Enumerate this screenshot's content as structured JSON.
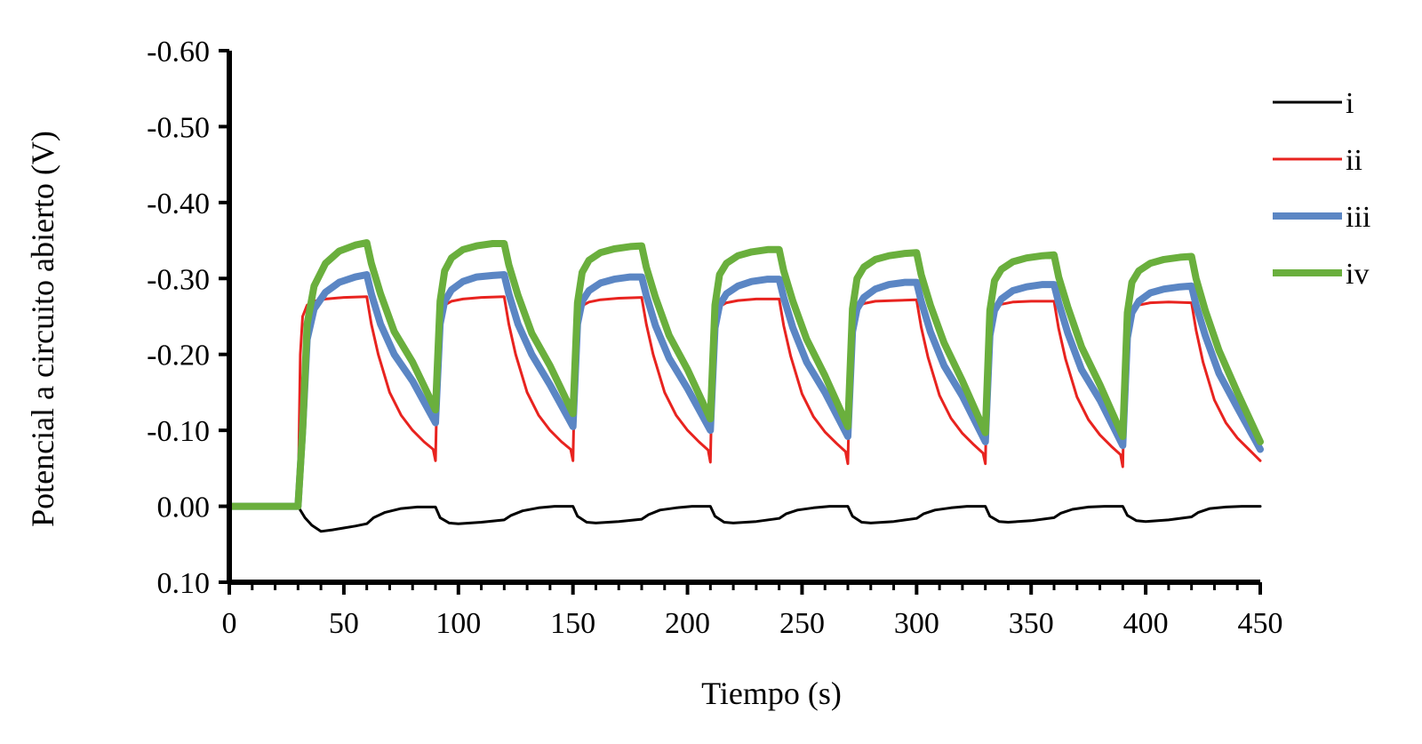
{
  "chart_data": {
    "type": "line",
    "xlabel": "Tiempo (s)",
    "ylabel": "Potencial a circuito abierto  (V)",
    "xlim": [
      0,
      450
    ],
    "ylim": [
      0.1,
      -0.6
    ],
    "y_axis_inverted": true,
    "grid": false,
    "legend_position": "right",
    "x_ticks": [
      "0",
      "50",
      "100",
      "150",
      "200",
      "250",
      "300",
      "350",
      "400",
      "450"
    ],
    "y_ticks": [
      "-0.60",
      "-0.50",
      "-0.40",
      "-0.30",
      "-0.20",
      "-0.10",
      "0.00",
      "0.10"
    ],
    "series": [
      {
        "name": "i",
        "color": "#000000",
        "width": 3,
        "x": [
          0,
          30,
          33,
          36,
          40,
          45,
          55,
          60,
          63,
          68,
          75,
          82,
          90,
          92,
          96,
          100,
          110,
          120,
          123,
          128,
          135,
          142,
          150,
          152,
          156,
          160,
          170,
          180,
          183,
          188,
          195,
          202,
          210,
          212,
          216,
          220,
          230,
          240,
          243,
          248,
          255,
          262,
          270,
          272,
          276,
          280,
          290,
          300,
          303,
          308,
          315,
          322,
          330,
          332,
          336,
          340,
          350,
          360,
          363,
          368,
          375,
          382,
          390,
          392,
          396,
          400,
          410,
          420,
          423,
          428,
          435,
          442,
          450
        ],
        "y": [
          0.0,
          0.0,
          0.015,
          0.025,
          0.033,
          0.031,
          0.026,
          0.023,
          0.015,
          0.008,
          0.003,
          0.001,
          0.001,
          0.015,
          0.022,
          0.023,
          0.021,
          0.018,
          0.012,
          0.006,
          0.002,
          0.0,
          0.0,
          0.013,
          0.021,
          0.022,
          0.02,
          0.017,
          0.011,
          0.005,
          0.002,
          0.0,
          0.0,
          0.013,
          0.021,
          0.022,
          0.02,
          0.016,
          0.01,
          0.005,
          0.002,
          0.0,
          0.0,
          0.013,
          0.021,
          0.022,
          0.02,
          0.016,
          0.01,
          0.005,
          0.002,
          0.0,
          0.0,
          0.013,
          0.02,
          0.021,
          0.019,
          0.015,
          0.009,
          0.004,
          0.001,
          0.0,
          0.0,
          0.012,
          0.019,
          0.02,
          0.018,
          0.014,
          0.008,
          0.003,
          0.001,
          0.0,
          0.0
        ]
      },
      {
        "name": "ii",
        "color": "#e8231f",
        "width": 3,
        "x": [
          0,
          30,
          31,
          32,
          34,
          37,
          42,
          50,
          60,
          62,
          65,
          70,
          75,
          80,
          85,
          89,
          90,
          91,
          92,
          94,
          97,
          102,
          110,
          120,
          122,
          125,
          130,
          135,
          140,
          145,
          149,
          150,
          151,
          152,
          154,
          157,
          162,
          170,
          180,
          182,
          185,
          190,
          195,
          200,
          205,
          209,
          210,
          211,
          212,
          214,
          217,
          222,
          230,
          240,
          242,
          245,
          250,
          255,
          260,
          265,
          269,
          270,
          271,
          272,
          274,
          277,
          282,
          290,
          300,
          302,
          305,
          310,
          315,
          320,
          325,
          329,
          330,
          331,
          332,
          334,
          337,
          342,
          350,
          360,
          362,
          365,
          370,
          375,
          380,
          385,
          389,
          390,
          391,
          392,
          394,
          397,
          402,
          410,
          420,
          422,
          425,
          430,
          435,
          440,
          445,
          450
        ],
        "y": [
          0.0,
          0.0,
          -0.2,
          -0.25,
          -0.265,
          -0.27,
          -0.273,
          -0.275,
          -0.276,
          -0.24,
          -0.2,
          -0.15,
          -0.12,
          -0.1,
          -0.085,
          -0.075,
          -0.06,
          -0.2,
          -0.25,
          -0.265,
          -0.27,
          -0.273,
          -0.275,
          -0.276,
          -0.24,
          -0.2,
          -0.15,
          -0.12,
          -0.1,
          -0.085,
          -0.075,
          -0.06,
          -0.2,
          -0.25,
          -0.264,
          -0.269,
          -0.272,
          -0.274,
          -0.275,
          -0.24,
          -0.2,
          -0.15,
          -0.12,
          -0.1,
          -0.085,
          -0.074,
          -0.058,
          -0.2,
          -0.25,
          -0.263,
          -0.268,
          -0.271,
          -0.273,
          -0.273,
          -0.238,
          -0.198,
          -0.148,
          -0.118,
          -0.098,
          -0.083,
          -0.072,
          -0.056,
          -0.2,
          -0.248,
          -0.262,
          -0.267,
          -0.27,
          -0.271,
          -0.272,
          -0.236,
          -0.196,
          -0.146,
          -0.116,
          -0.096,
          -0.081,
          -0.07,
          -0.056,
          -0.2,
          -0.247,
          -0.261,
          -0.266,
          -0.269,
          -0.27,
          -0.27,
          -0.234,
          -0.194,
          -0.144,
          -0.114,
          -0.094,
          -0.079,
          -0.068,
          -0.052,
          -0.2,
          -0.246,
          -0.26,
          -0.265,
          -0.268,
          -0.269,
          -0.268,
          -0.232,
          -0.19,
          -0.14,
          -0.11,
          -0.09,
          -0.075,
          -0.06
        ]
      },
      {
        "name": "iii",
        "color": "#5b86c4",
        "width": 8,
        "x": [
          0,
          30,
          32,
          34,
          37,
          42,
          48,
          55,
          60,
          62,
          66,
          72,
          80,
          90,
          92,
          94,
          97,
          102,
          108,
          115,
          120,
          122,
          126,
          132,
          140,
          150,
          152,
          154,
          157,
          162,
          168,
          175,
          180,
          182,
          186,
          192,
          200,
          210,
          212,
          214,
          217,
          222,
          228,
          235,
          240,
          242,
          246,
          252,
          260,
          270,
          272,
          274,
          277,
          282,
          288,
          295,
          300,
          302,
          306,
          312,
          320,
          330,
          332,
          334,
          337,
          342,
          348,
          355,
          360,
          362,
          366,
          372,
          380,
          390,
          392,
          394,
          397,
          402,
          408,
          415,
          420,
          422,
          426,
          432,
          440,
          450
        ],
        "y": [
          0.0,
          0.0,
          -0.1,
          -0.22,
          -0.26,
          -0.282,
          -0.295,
          -0.302,
          -0.305,
          -0.28,
          -0.24,
          -0.2,
          -0.165,
          -0.11,
          -0.24,
          -0.27,
          -0.285,
          -0.296,
          -0.302,
          -0.304,
          -0.305,
          -0.28,
          -0.24,
          -0.2,
          -0.16,
          -0.105,
          -0.24,
          -0.27,
          -0.284,
          -0.294,
          -0.299,
          -0.302,
          -0.302,
          -0.278,
          -0.238,
          -0.195,
          -0.155,
          -0.1,
          -0.235,
          -0.265,
          -0.28,
          -0.29,
          -0.296,
          -0.299,
          -0.299,
          -0.275,
          -0.235,
          -0.19,
          -0.15,
          -0.092,
          -0.23,
          -0.26,
          -0.275,
          -0.286,
          -0.292,
          -0.295,
          -0.295,
          -0.27,
          -0.23,
          -0.185,
          -0.145,
          -0.085,
          -0.225,
          -0.258,
          -0.273,
          -0.284,
          -0.289,
          -0.292,
          -0.292,
          -0.268,
          -0.228,
          -0.18,
          -0.14,
          -0.08,
          -0.222,
          -0.255,
          -0.27,
          -0.281,
          -0.286,
          -0.289,
          -0.29,
          -0.265,
          -0.225,
          -0.175,
          -0.13,
          -0.075
        ]
      },
      {
        "name": "iv",
        "color": "#6aaf3d",
        "width": 8,
        "x": [
          0,
          30,
          32,
          34,
          37,
          42,
          48,
          55,
          60,
          62,
          66,
          72,
          80,
          90,
          92,
          94,
          97,
          102,
          108,
          115,
          120,
          122,
          126,
          132,
          140,
          150,
          152,
          154,
          157,
          162,
          168,
          175,
          180,
          182,
          186,
          192,
          200,
          210,
          212,
          214,
          217,
          222,
          228,
          235,
          240,
          242,
          246,
          252,
          260,
          270,
          272,
          274,
          277,
          282,
          288,
          295,
          300,
          302,
          306,
          312,
          320,
          330,
          332,
          334,
          337,
          342,
          348,
          355,
          360,
          362,
          366,
          372,
          380,
          390,
          392,
          394,
          397,
          402,
          408,
          415,
          420,
          422,
          426,
          432,
          440,
          450
        ],
        "y": [
          0.0,
          0.0,
          -0.1,
          -0.24,
          -0.29,
          -0.32,
          -0.336,
          -0.344,
          -0.347,
          -0.32,
          -0.28,
          -0.23,
          -0.19,
          -0.127,
          -0.27,
          -0.31,
          -0.327,
          -0.338,
          -0.343,
          -0.346,
          -0.346,
          -0.318,
          -0.278,
          -0.228,
          -0.185,
          -0.122,
          -0.268,
          -0.308,
          -0.324,
          -0.334,
          -0.339,
          -0.342,
          -0.343,
          -0.315,
          -0.275,
          -0.225,
          -0.18,
          -0.115,
          -0.265,
          -0.305,
          -0.32,
          -0.33,
          -0.335,
          -0.338,
          -0.338,
          -0.31,
          -0.27,
          -0.22,
          -0.172,
          -0.105,
          -0.26,
          -0.3,
          -0.315,
          -0.325,
          -0.33,
          -0.333,
          -0.334,
          -0.305,
          -0.265,
          -0.215,
          -0.165,
          -0.097,
          -0.258,
          -0.297,
          -0.312,
          -0.322,
          -0.327,
          -0.33,
          -0.331,
          -0.302,
          -0.262,
          -0.21,
          -0.16,
          -0.092,
          -0.255,
          -0.295,
          -0.31,
          -0.32,
          -0.325,
          -0.328,
          -0.329,
          -0.3,
          -0.258,
          -0.205,
          -0.15,
          -0.085
        ]
      }
    ]
  }
}
